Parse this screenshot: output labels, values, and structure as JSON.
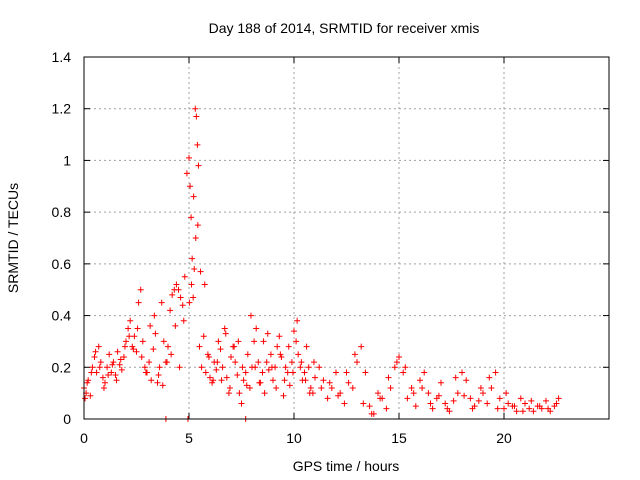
{
  "chart_data": {
    "type": "scatter",
    "title": "Day 188 of 2014, SRMTID for receiver xmis",
    "xlabel": "GPS time / hours",
    "ylabel": "SRMTID / TECUs",
    "xlim": [
      0,
      25
    ],
    "ylim": [
      0,
      1.4
    ],
    "x_ticks": [
      0,
      5,
      10,
      15,
      20
    ],
    "x_tick_labels": [
      "0",
      "5",
      "10",
      "15",
      "20"
    ],
    "y_ticks": [
      0,
      0.2,
      0.4,
      0.6,
      0.8,
      1.0,
      1.2,
      1.4
    ],
    "y_tick_labels": [
      "0",
      "0.2",
      "0.4",
      "0.6",
      "0.8",
      "1",
      "1.2",
      "1.4"
    ],
    "grid": true,
    "marker": "+",
    "color": "#ff0000",
    "series": [
      {
        "name": "SRMTID",
        "x": [
          0.0,
          0.1,
          0.2,
          0.3,
          0.4,
          0.5,
          0.6,
          0.7,
          0.8,
          0.9,
          1.0,
          1.1,
          1.2,
          1.3,
          1.4,
          1.5,
          1.6,
          1.7,
          1.8,
          1.9,
          2.0,
          2.1,
          2.2,
          2.3,
          2.4,
          2.5,
          2.6,
          2.7,
          2.8,
          2.9,
          3.0,
          3.1,
          3.2,
          3.3,
          3.4,
          3.5,
          3.6,
          3.7,
          3.8,
          3.9,
          4.0,
          4.1,
          4.2,
          4.3,
          4.4,
          4.5,
          4.6,
          4.7,
          4.8,
          4.9,
          5.0,
          5.05,
          5.1,
          5.15,
          5.2,
          5.25,
          5.3,
          5.35,
          5.4,
          5.45,
          5.5,
          5.6,
          5.7,
          5.8,
          5.9,
          6.0,
          6.1,
          6.2,
          6.3,
          6.4,
          6.5,
          6.6,
          6.7,
          6.8,
          6.9,
          7.0,
          7.1,
          7.2,
          7.3,
          7.4,
          7.5,
          7.6,
          7.7,
          7.8,
          7.9,
          8.0,
          8.1,
          8.2,
          8.3,
          8.4,
          8.5,
          8.6,
          8.7,
          8.8,
          8.9,
          9.0,
          9.1,
          9.2,
          9.3,
          9.4,
          9.5,
          9.6,
          9.7,
          9.8,
          9.9,
          10.0,
          10.1,
          10.2,
          10.3,
          10.4,
          10.5,
          10.6,
          10.7,
          10.8,
          10.9,
          11.0,
          11.2,
          11.4,
          11.6,
          11.8,
          12.0,
          12.2,
          12.4,
          12.6,
          12.8,
          13.0,
          13.2,
          13.4,
          13.6,
          13.8,
          14.0,
          14.2,
          14.4,
          14.6,
          14.8,
          15.0,
          15.2,
          15.4,
          15.6,
          15.8,
          16.0,
          16.2,
          16.4,
          16.6,
          16.8,
          17.0,
          17.2,
          17.4,
          17.6,
          17.8,
          18.0,
          18.2,
          18.4,
          18.6,
          18.8,
          19.0,
          19.2,
          19.4,
          19.6,
          19.8,
          20.0,
          20.2,
          20.4,
          20.6,
          20.8,
          21.0,
          21.2,
          21.4,
          21.6,
          21.8,
          22.0,
          22.2,
          22.4,
          22.6,
          3.9,
          4.95,
          7.7,
          0.05,
          0.15,
          0.35,
          0.55,
          0.75,
          0.95,
          1.15,
          1.35,
          1.55,
          1.75,
          1.95,
          2.15,
          2.35,
          2.55,
          2.75,
          2.95,
          3.15,
          3.35,
          3.55,
          3.75,
          3.95,
          4.15,
          4.35,
          4.55,
          4.75,
          5.02,
          5.12,
          5.22,
          5.32,
          5.42,
          5.55,
          5.75,
          5.95,
          6.15,
          6.35,
          6.55,
          6.75,
          6.95,
          7.15,
          7.35,
          7.55,
          7.75,
          7.95,
          8.15,
          8.35,
          8.55,
          8.75,
          8.95,
          9.15,
          9.35,
          9.55,
          9.75,
          9.95,
          10.15,
          10.35,
          10.55,
          10.75,
          10.95,
          11.3,
          11.7,
          12.1,
          12.5,
          12.9,
          13.3,
          13.7,
          14.1,
          14.5,
          14.9,
          15.3,
          15.7,
          16.1,
          16.5,
          16.9,
          17.3,
          17.7,
          18.1,
          18.5,
          18.9,
          19.3,
          19.7,
          20.1,
          20.5,
          20.9,
          21.3,
          21.7,
          22.1,
          22.5
        ],
        "y": [
          0.12,
          0.1,
          0.15,
          0.09,
          0.2,
          0.24,
          0.18,
          0.28,
          0.22,
          0.16,
          0.14,
          0.2,
          0.25,
          0.18,
          0.22,
          0.17,
          0.26,
          0.21,
          0.19,
          0.24,
          0.3,
          0.35,
          0.38,
          0.28,
          0.32,
          0.26,
          0.45,
          0.5,
          0.3,
          0.2,
          0.18,
          0.22,
          0.15,
          0.27,
          0.33,
          0.14,
          0.2,
          0.45,
          0.3,
          0.22,
          0.28,
          0.42,
          0.48,
          0.5,
          0.52,
          0.5,
          0.47,
          0.44,
          0.55,
          0.95,
          1.01,
          0.9,
          0.78,
          0.62,
          0.47,
          0.58,
          1.2,
          1.17,
          1.06,
          0.98,
          0.28,
          0.2,
          0.32,
          0.18,
          0.25,
          0.16,
          0.14,
          0.22,
          0.19,
          0.3,
          0.27,
          0.2,
          0.35,
          0.16,
          0.1,
          0.24,
          0.28,
          0.22,
          0.17,
          0.1,
          0.06,
          0.15,
          0.18,
          0.25,
          0.12,
          0.2,
          0.3,
          0.35,
          0.22,
          0.14,
          0.18,
          0.1,
          0.22,
          0.19,
          0.25,
          0.15,
          0.2,
          0.28,
          0.32,
          0.24,
          0.09,
          0.2,
          0.18,
          0.13,
          0.22,
          0.34,
          0.3,
          0.25,
          0.2,
          0.15,
          0.18,
          0.28,
          0.2,
          0.12,
          0.1,
          0.16,
          0.2,
          0.15,
          0.08,
          0.12,
          0.18,
          0.1,
          0.06,
          0.14,
          0.12,
          0.22,
          0.28,
          0.18,
          0.05,
          0.02,
          0.1,
          0.08,
          0.04,
          0.12,
          0.2,
          0.24,
          0.18,
          0.08,
          0.12,
          0.05,
          0.15,
          0.18,
          0.1,
          0.04,
          0.08,
          0.14,
          0.06,
          0.03,
          0.07,
          0.1,
          0.18,
          0.15,
          0.08,
          0.05,
          0.07,
          0.1,
          0.06,
          0.12,
          0.18,
          0.08,
          0.04,
          0.06,
          0.05,
          0.03,
          0.08,
          0.06,
          0.04,
          0.03,
          0.05,
          0.04,
          0.07,
          0.03,
          0.05,
          0.08,
          0.0,
          0.0,
          0.0,
          0.08,
          0.14,
          0.18,
          0.26,
          0.2,
          0.12,
          0.17,
          0.21,
          0.15,
          0.23,
          0.28,
          0.32,
          0.27,
          0.35,
          0.24,
          0.18,
          0.36,
          0.4,
          0.17,
          0.13,
          0.22,
          0.25,
          0.36,
          0.2,
          0.38,
          0.45,
          0.52,
          0.86,
          0.7,
          0.75,
          0.57,
          0.52,
          0.24,
          0.15,
          0.22,
          0.15,
          0.33,
          0.12,
          0.28,
          0.3,
          0.2,
          0.13,
          0.4,
          0.2,
          0.14,
          0.3,
          0.33,
          0.2,
          0.12,
          0.25,
          0.15,
          0.28,
          0.18,
          0.38,
          0.22,
          0.15,
          0.1,
          0.22,
          0.12,
          0.14,
          0.09,
          0.18,
          0.25,
          0.06,
          0.02,
          0.08,
          0.16,
          0.22,
          0.2,
          0.1,
          0.12,
          0.06,
          0.09,
          0.04,
          0.16,
          0.09,
          0.04,
          0.12,
          0.16,
          0.04,
          0.1,
          0.05,
          0.03,
          0.07,
          0.05,
          0.04,
          0.06
        ]
      }
    ]
  }
}
